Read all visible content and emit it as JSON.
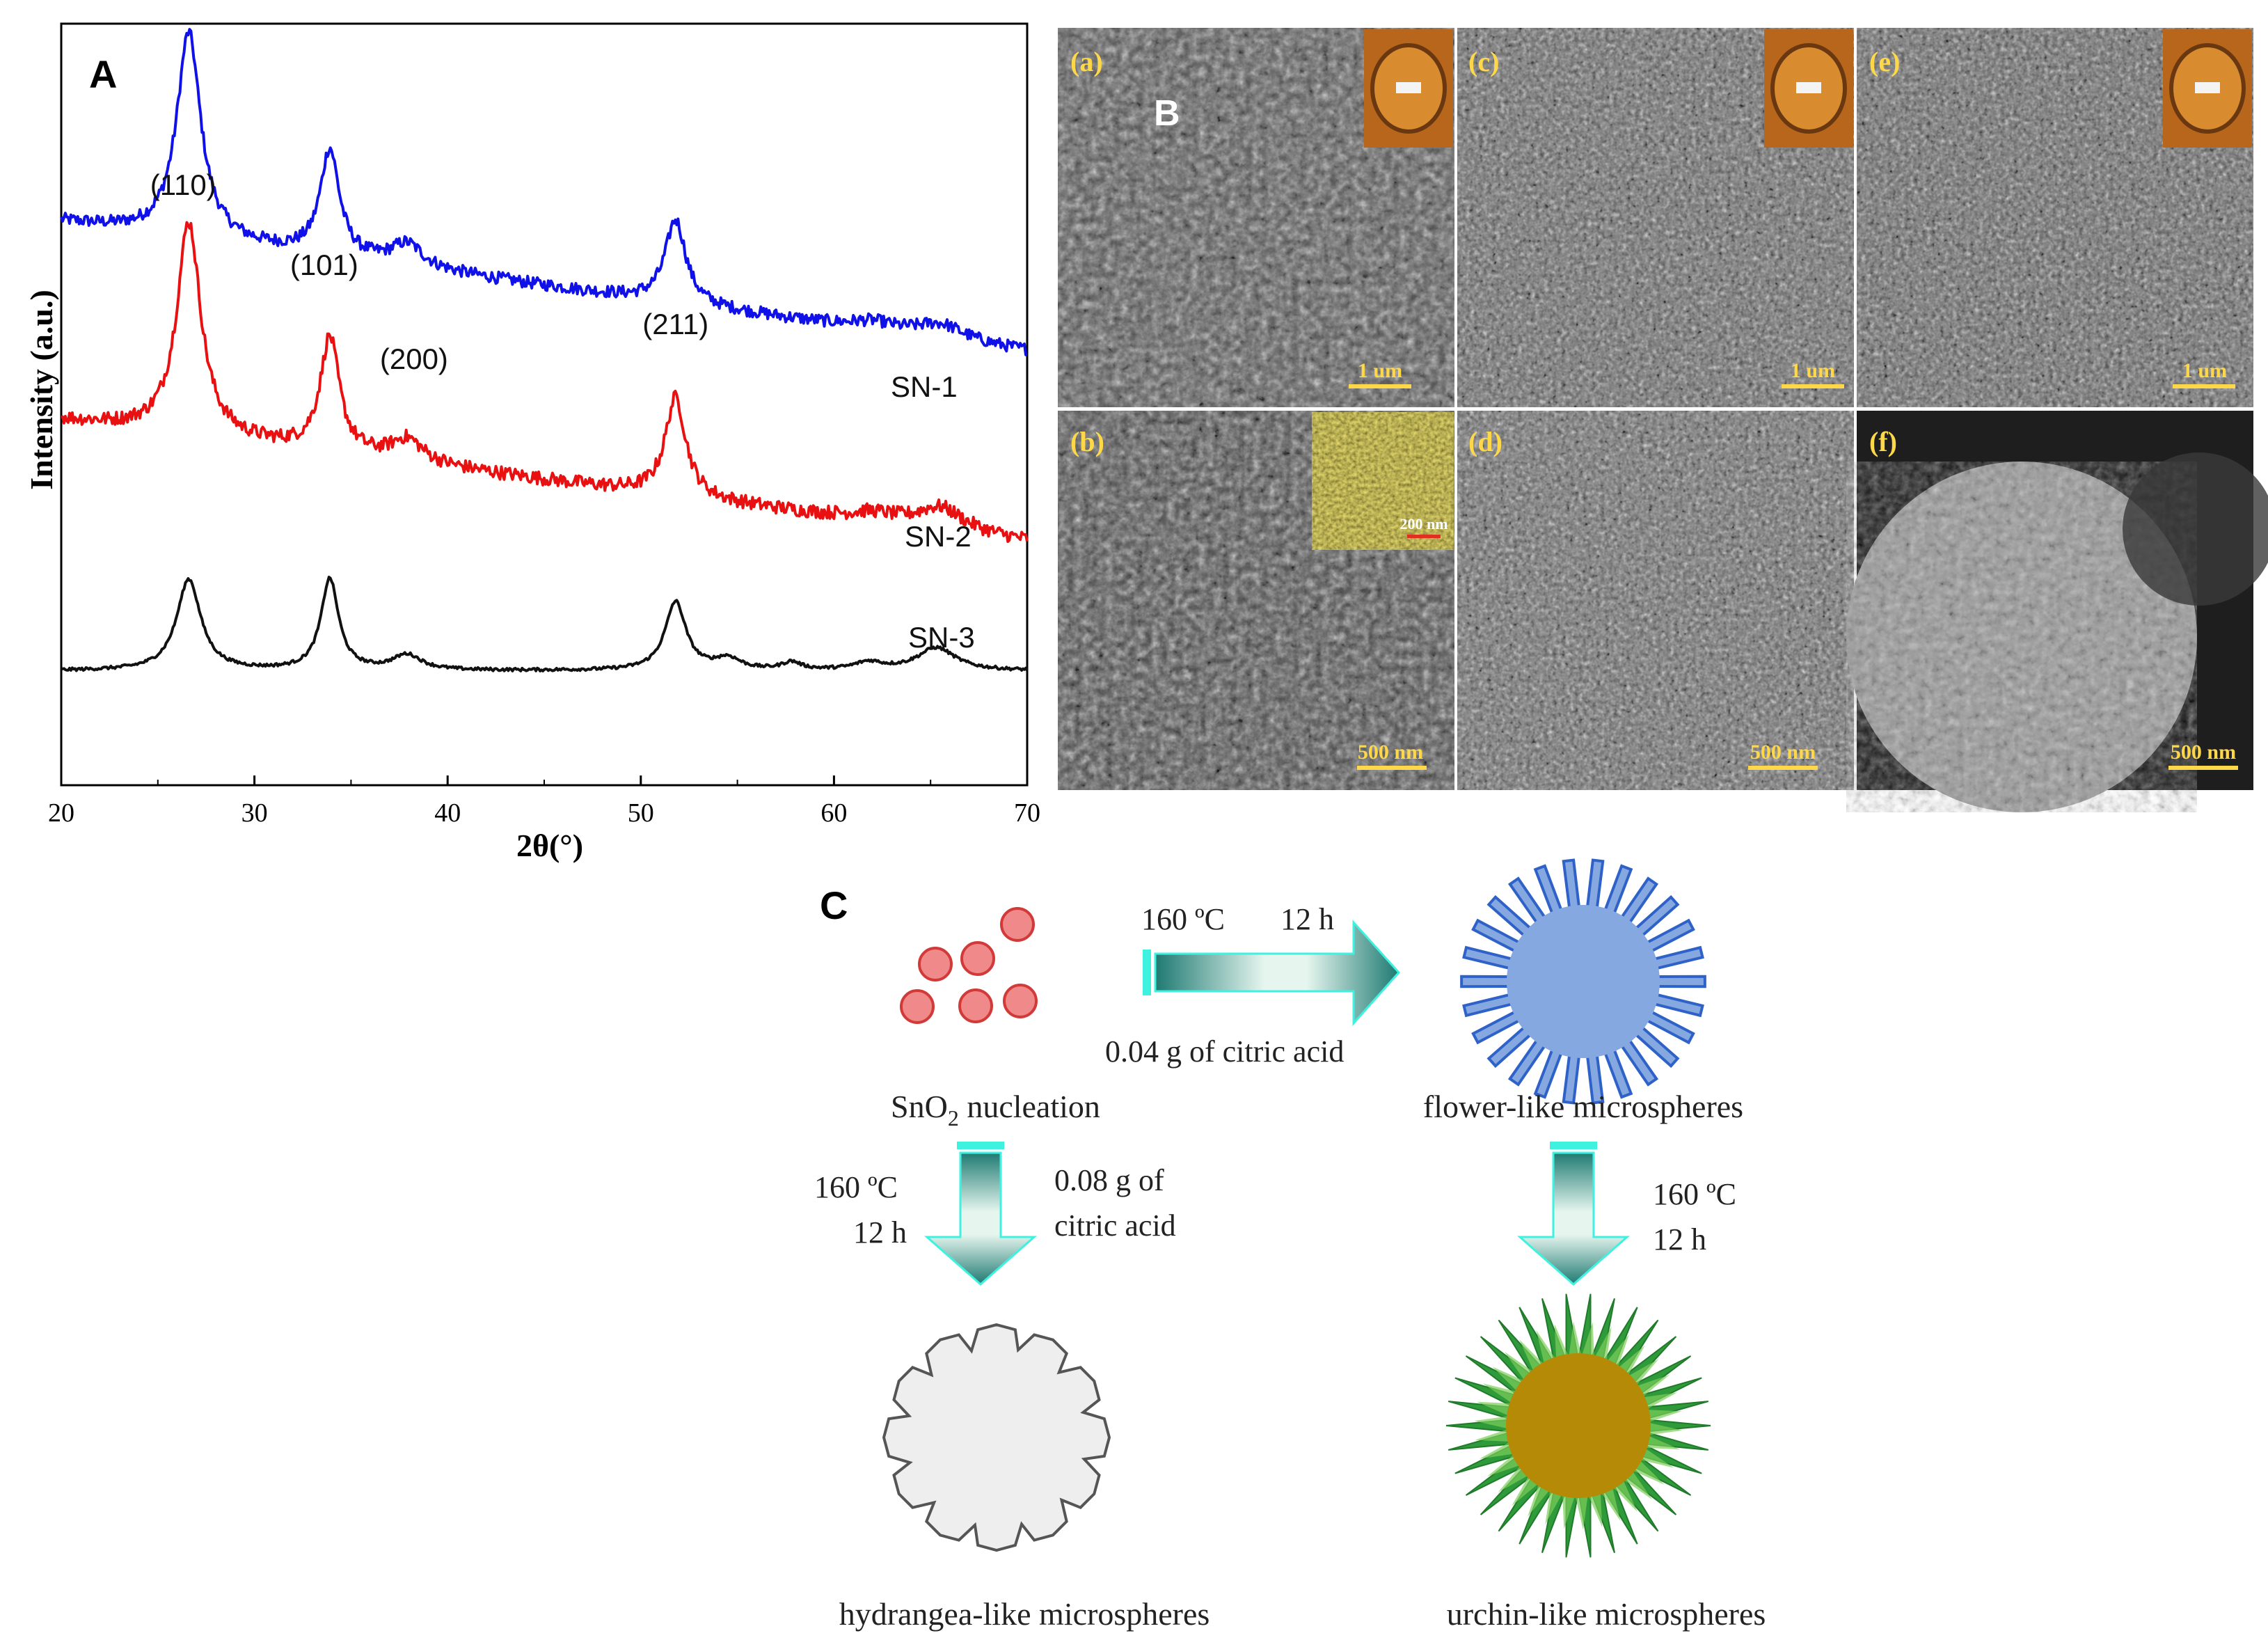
{
  "figure": {
    "panel_a_label": "A",
    "panel_b_label": "B",
    "panel_c_label": "C"
  },
  "chart_data": {
    "type": "line",
    "title": "",
    "xlabel": "2θ(°)",
    "ylabel": "Intensity (a.u.)",
    "xlim": [
      20,
      70
    ],
    "x_ticks": [
      20,
      30,
      40,
      50,
      60,
      70
    ],
    "grid": false,
    "peaks": [
      {
        "label": "(110)",
        "x": 26.6
      },
      {
        "label": "(101)",
        "x": 33.9
      },
      {
        "label": "(200)",
        "x": 37.9
      },
      {
        "label": "(211)",
        "x": 51.8
      }
    ],
    "series": [
      {
        "name": "SN-1",
        "color": "#1010e8",
        "offset": 0.74,
        "baseline_start": 0.0,
        "baseline_end": -0.17,
        "peaks": [
          {
            "x": 26.6,
            "height": 0.27,
            "width": 0.75
          },
          {
            "x": 33.9,
            "height": 0.14,
            "width": 0.6
          },
          {
            "x": 37.9,
            "height": 0.03,
            "width": 1.0
          },
          {
            "x": 51.8,
            "height": 0.11,
            "width": 0.65
          },
          {
            "x": 62.0,
            "height": 0.01,
            "width": 1.4
          },
          {
            "x": 65.5,
            "height": 0.02,
            "width": 1.5
          }
        ],
        "noise": 0.008
      },
      {
        "name": "SN-2",
        "color": "#e81010",
        "offset": 0.48,
        "baseline_start": 0.0,
        "baseline_end": -0.16,
        "peaks": [
          {
            "x": 26.6,
            "height": 0.28,
            "width": 0.75
          },
          {
            "x": 33.9,
            "height": 0.15,
            "width": 0.6
          },
          {
            "x": 37.9,
            "height": 0.03,
            "width": 1.0
          },
          {
            "x": 51.8,
            "height": 0.13,
            "width": 0.65
          },
          {
            "x": 62.0,
            "height": 0.01,
            "width": 1.4
          },
          {
            "x": 65.5,
            "height": 0.03,
            "width": 1.5
          }
        ],
        "noise": 0.009
      },
      {
        "name": "SN-3",
        "color": "#111111",
        "offset": 0.15,
        "baseline_start": 0.0,
        "baseline_end": 0.0,
        "peaks": [
          {
            "x": 26.6,
            "height": 0.12,
            "width": 0.75
          },
          {
            "x": 33.9,
            "height": 0.12,
            "width": 0.55
          },
          {
            "x": 37.9,
            "height": 0.02,
            "width": 0.9
          },
          {
            "x": 51.8,
            "height": 0.09,
            "width": 0.65
          },
          {
            "x": 54.5,
            "height": 0.015,
            "width": 0.8
          },
          {
            "x": 57.8,
            "height": 0.01,
            "width": 0.6
          },
          {
            "x": 61.8,
            "height": 0.01,
            "width": 0.9
          },
          {
            "x": 65.3,
            "height": 0.03,
            "width": 1.2
          }
        ],
        "noise": 0.002
      }
    ]
  },
  "sem": {
    "panels": [
      {
        "label": "(a)",
        "scale": "1 um"
      },
      {
        "label": "(c)",
        "scale": "1 um"
      },
      {
        "label": "(e)",
        "scale": "1 um"
      },
      {
        "label": "(b)",
        "scale": "500 nm",
        "inset_scale": "200 nm"
      },
      {
        "label": "(d)",
        "scale": "500 nm"
      },
      {
        "label": "(f)",
        "scale": "500 nm"
      }
    ]
  },
  "scheme": {
    "sno2_label_main": "SnO",
    "sno2_label_sub": "2",
    "sno2_label_rest": " nucleation",
    "flower_label": "flower-like microspheres",
    "hydrangea_label": "hydrangea-like microspheres",
    "urchin_label": "urchin-like microspheres",
    "arrow1_temp": "160 ºC",
    "arrow1_time": "12 h",
    "arrow1_reagent": "0.04 g of citric acid",
    "arrow2_temp": "160 ºC",
    "arrow2_time": "12 h",
    "arrow2_reagent_line1": "0.08 g of",
    "arrow2_reagent_line2": "citric acid",
    "arrow3_temp": "160 ºC",
    "arrow3_time": "12 h"
  },
  "colors": {
    "nucleus_fill": "#f08a8a",
    "nucleus_stroke": "#d23a3a",
    "flower_fill": "#86a8e0",
    "flower_stroke": "#2f62c8",
    "urchin_core": "#b58a06",
    "urchin_spike": "#2f9a3a",
    "hydrangea_fill": "#eeeeee",
    "arrow_cyan": "#3ff2e0",
    "arrow_teal": "#1f8078",
    "sem_label": "#ffd84a"
  }
}
